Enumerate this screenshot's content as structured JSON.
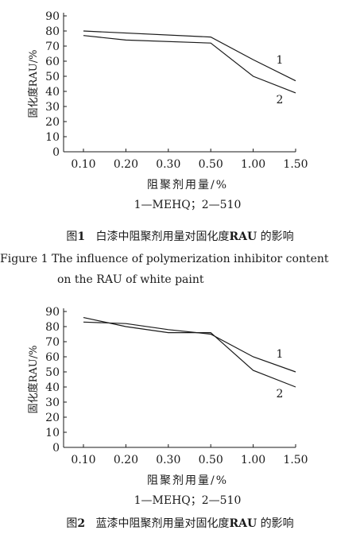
{
  "figure1": {
    "caption_prefix": "图",
    "caption_number": "1",
    "caption_text_before": "白漆中阻聚剂用量对固化度",
    "caption_bold": "RAU",
    "caption_text_after": "的影响",
    "english_caption_line1": "Figure 1   The influence of polymerization inhibitor content",
    "english_caption_line2": "on the RAU of white paint"
  },
  "figure2": {
    "caption_prefix": "图",
    "caption_number": "2",
    "caption_text_before": "蓝漆中阻聚剂用量对固化度",
    "caption_bold": "RAU",
    "caption_text_after": "的影响"
  },
  "chart_data": [
    {
      "type": "line",
      "title": "",
      "xlabel": "阻聚剂用量/%",
      "ylabel": "固化度RAU/%",
      "x": [
        0.1,
        0.2,
        0.3,
        0.5,
        1.0,
        1.5
      ],
      "x_tick_labels": [
        "0.10",
        "0.20",
        "0.30",
        "0.50",
        "1.00",
        "1.50"
      ],
      "y_ticks": [
        0,
        10,
        20,
        30,
        40,
        50,
        60,
        70,
        80,
        90
      ],
      "ylim": [
        0,
        90
      ],
      "grid": false,
      "legend_note": "1—MEHQ；2—510",
      "series": [
        {
          "name": "1",
          "values": [
            80,
            null,
            null,
            76,
            61,
            47
          ]
        },
        {
          "name": "2",
          "values": [
            77,
            74,
            null,
            72,
            50,
            39
          ]
        }
      ]
    },
    {
      "type": "line",
      "title": "",
      "xlabel": "阻聚剂用量/%",
      "ylabel": "固化度RAU/%",
      "x": [
        0.1,
        0.2,
        0.3,
        0.5,
        1.0,
        1.5
      ],
      "x_tick_labels": [
        "0.10",
        "0.20",
        "0.30",
        "0.50",
        "1.00",
        "1.50"
      ],
      "y_ticks": [
        0,
        10,
        20,
        30,
        40,
        50,
        60,
        70,
        80,
        90
      ],
      "ylim": [
        0,
        90
      ],
      "grid": false,
      "legend_note": "1—MEHQ；2—510",
      "series": [
        {
          "name": "1",
          "values": [
            83,
            82,
            78,
            75,
            60,
            50
          ]
        },
        {
          "name": "2",
          "values": [
            86,
            80,
            76,
            76,
            51,
            40
          ]
        }
      ]
    }
  ]
}
